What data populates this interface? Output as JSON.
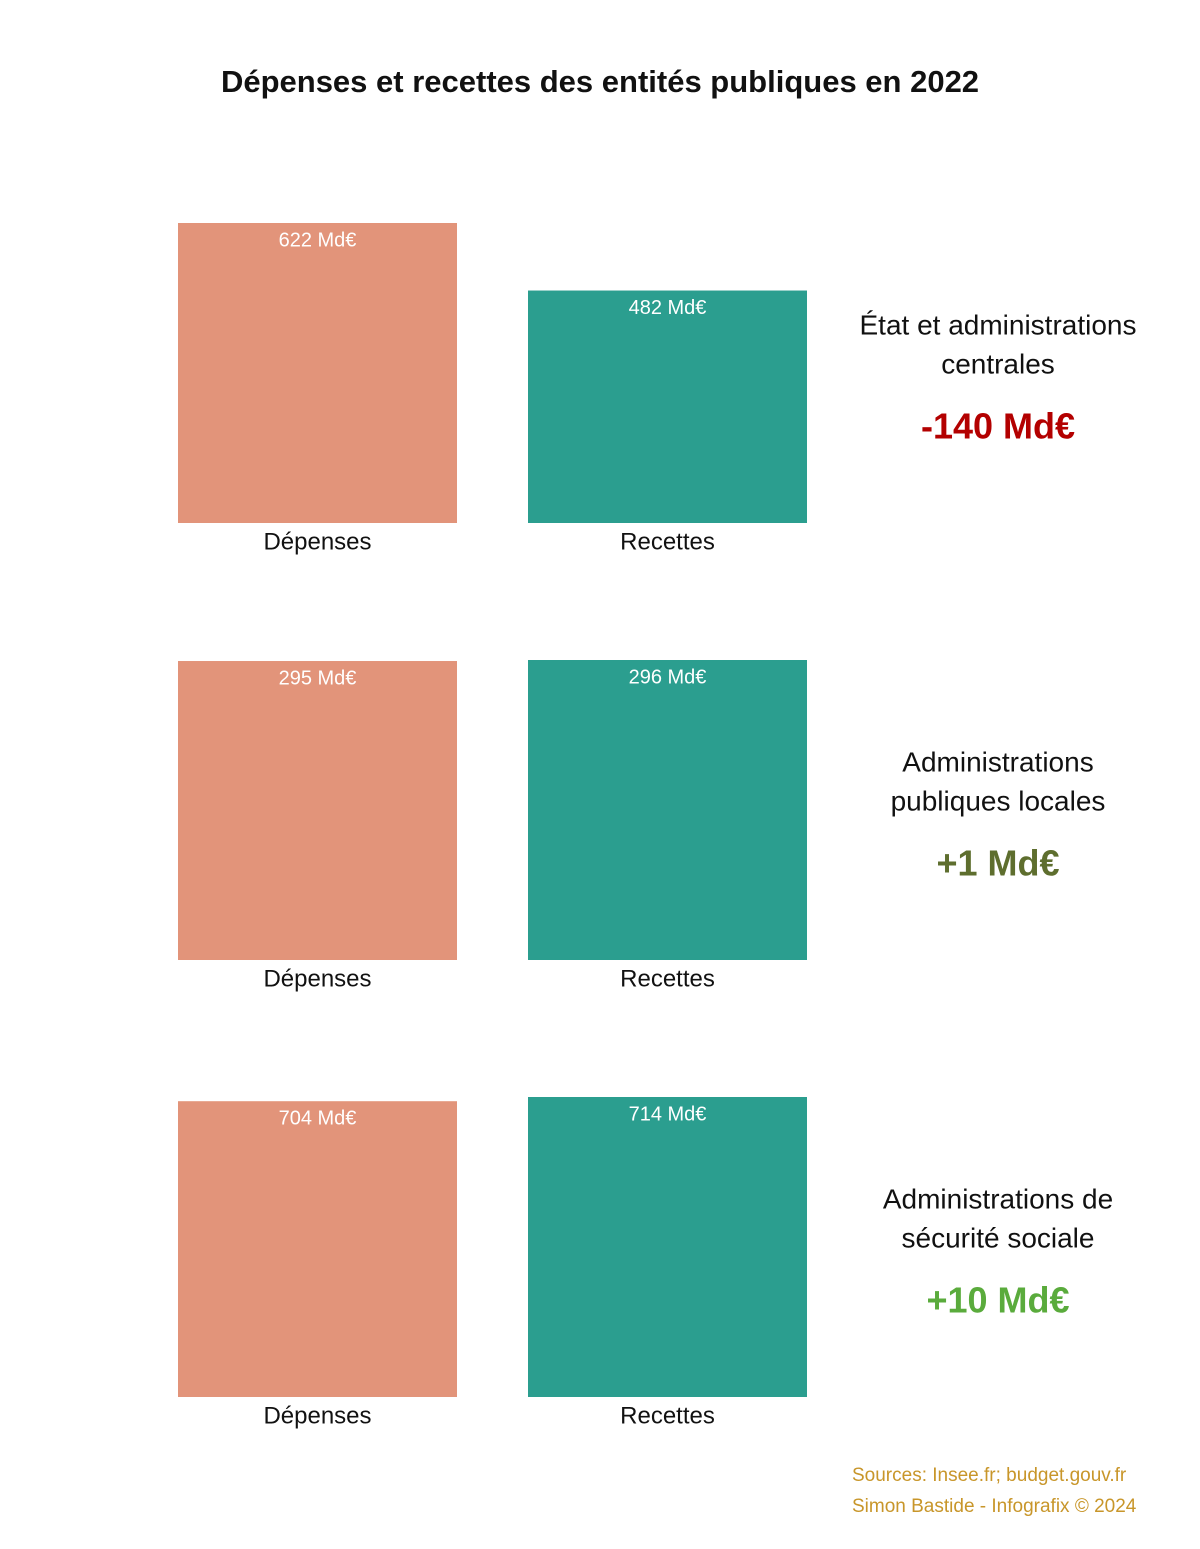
{
  "title": "Dépenses et recettes des entités publiques en 2022",
  "chart_data": [
    {
      "type": "bar",
      "categories": [
        "Dépenses",
        "Recettes"
      ],
      "values": [
        622,
        482
      ],
      "value_labels": [
        "622 Md€",
        "482 Md€"
      ],
      "colors": [
        "#e2947a",
        "#2b9e8f"
      ],
      "label": [
        "État et administrations",
        "centrales"
      ],
      "balance": -140,
      "balance_label": "-140 Md€",
      "balance_color": "#b30000"
    },
    {
      "type": "bar",
      "categories": [
        "Dépenses",
        "Recettes"
      ],
      "values": [
        295,
        296
      ],
      "value_labels": [
        "295 Md€",
        "296 Md€"
      ],
      "colors": [
        "#e2947a",
        "#2b9e8f"
      ],
      "label": [
        "Administrations",
        "publiques locales"
      ],
      "balance": 1,
      "balance_label": "+1 Md€",
      "balance_color": "#5e6e2e"
    },
    {
      "type": "bar",
      "categories": [
        "Dépenses",
        "Recettes"
      ],
      "values": [
        704,
        714
      ],
      "value_labels": [
        "704 Md€",
        "714 Md€"
      ],
      "colors": [
        "#e2947a",
        "#2b9e8f"
      ],
      "label": [
        "Administrations de",
        "sécurité sociale"
      ],
      "balance": 10,
      "balance_label": "+10 Md€",
      "balance_color": "#5aab3c"
    }
  ],
  "sources": [
    "Sources: Insee.fr; budget.gouv.fr",
    "Simon Bastide - Infografix © 2024"
  ]
}
